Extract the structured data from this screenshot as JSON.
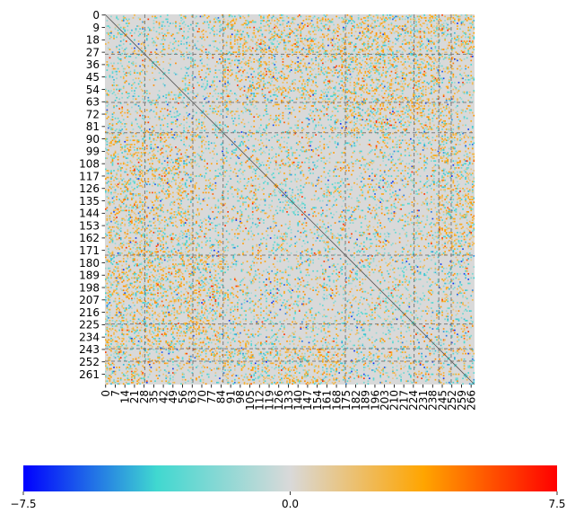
{
  "chart_data": {
    "type": "heatmap",
    "title": "",
    "xlabel": "",
    "ylabel": "",
    "n": 269,
    "x_tick_labels": [
      "0",
      "7",
      "14",
      "21",
      "28",
      "35",
      "42",
      "49",
      "56",
      "63",
      "70",
      "77",
      "84",
      "91",
      "98",
      "105",
      "112",
      "119",
      "126",
      "133",
      "140",
      "147",
      "154",
      "161",
      "168",
      "175",
      "182",
      "189",
      "196",
      "203",
      "210",
      "217",
      "224",
      "231",
      "238",
      "245",
      "252",
      "259",
      "266"
    ],
    "y_tick_labels": [
      "0",
      "9",
      "18",
      "27",
      "36",
      "45",
      "54",
      "63",
      "72",
      "81",
      "90",
      "99",
      "108",
      "117",
      "126",
      "135",
      "144",
      "153",
      "162",
      "171",
      "180",
      "189",
      "198",
      "207",
      "216",
      "225",
      "234",
      "243",
      "252",
      "261"
    ],
    "block_boundaries": [
      29,
      64,
      86,
      175,
      225,
      243,
      252
    ],
    "colorbar": {
      "min": -7.5,
      "max": 7.5,
      "tick_labels": [
        "−7.5",
        "0.0",
        "7.5"
      ],
      "colors": [
        "#0000ff",
        "#40d8d0",
        "#d9d9d9",
        "#ffa500",
        "#ff0000"
      ],
      "orientation": "horizontal",
      "placement": "bottom"
    },
    "background_value": 0.0,
    "density": 0.14,
    "hot_regions": [
      {
        "rows": [
          0,
          29
        ],
        "cols": [
          86,
          175
        ],
        "bias": 0.55
      },
      {
        "rows": [
          29,
          64
        ],
        "cols": [
          86,
          175
        ],
        "bias": 0.45
      },
      {
        "rows": [
          64,
          86
        ],
        "cols": [
          175,
          252
        ],
        "bias": 0.5
      },
      {
        "rows": [
          175,
          243
        ],
        "cols": [
          0,
          86
        ],
        "bias": 0.6
      },
      {
        "rows": [
          243,
          269
        ],
        "cols": [
          86,
          175
        ],
        "bias": 0.55
      },
      {
        "rows": [
          0,
          29
        ],
        "cols": [
          243,
          269
        ],
        "bias": 0.55
      }
    ]
  }
}
